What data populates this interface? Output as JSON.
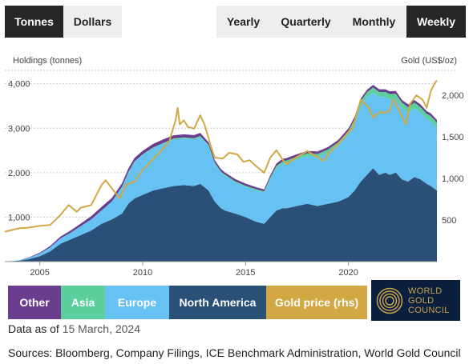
{
  "unit_toggle": [
    {
      "label": "Tonnes",
      "active": true
    },
    {
      "label": "Dollars",
      "active": false
    }
  ],
  "period_toggle": [
    {
      "label": "Yearly",
      "active": false
    },
    {
      "label": "Quarterly",
      "active": false
    },
    {
      "label": "Monthly",
      "active": false
    },
    {
      "label": "Weekly",
      "active": true
    }
  ],
  "legend": [
    {
      "label": "Other",
      "color": "#6a3d8f"
    },
    {
      "label": "Asia",
      "color": "#5ccf9d"
    },
    {
      "label": "Europe",
      "color": "#66c2f2"
    },
    {
      "label": "North America",
      "color": "#2a5078"
    },
    {
      "label": "Gold price (rhs)",
      "color": "#d2a845"
    }
  ],
  "logo": {
    "lines": [
      "WORLD",
      "GOLD",
      "COUNCIL"
    ]
  },
  "footer": {
    "data_as_of_label": "Data as of",
    "data_as_of_date": "15 March, 2024",
    "sources": "Sources: Bloomberg, Company Filings, ICE Benchmark Administration, World Gold Council"
  },
  "chart_data": {
    "type": "area",
    "ylabel": "Holdings (tonnes)",
    "y2label": "Gold (US$/oz)",
    "xlim": [
      2003.3,
      2024.3
    ],
    "ylim": [
      0,
      4300
    ],
    "y2lim": [
      0,
      2300
    ],
    "xticks": [
      2005,
      2010,
      2015,
      2020
    ],
    "xtick_labels": [
      "2005",
      "2010",
      "2015",
      "2020"
    ],
    "yticks": [
      1000,
      2000,
      3000,
      4000
    ],
    "ytick_labels": [
      "1,000",
      "2,000",
      "3,000",
      "4,000"
    ],
    "y2ticks": [
      500,
      1000,
      1500,
      2000
    ],
    "y2tick_labels": [
      "500",
      "1,000",
      "1,500",
      "2,000"
    ],
    "grid": true,
    "x": [
      2003.3,
      2004.0,
      2004.5,
      2005.0,
      2005.5,
      2006.0,
      2006.5,
      2007.0,
      2007.5,
      2008.0,
      2008.5,
      2009.0,
      2009.3,
      2009.6,
      2010.0,
      2010.5,
      2011.0,
      2011.5,
      2012.0,
      2012.5,
      2012.8,
      2013.2,
      2013.5,
      2013.8,
      2014.0,
      2014.5,
      2015.0,
      2015.5,
      2015.9,
      2016.2,
      2016.5,
      2016.8,
      2017.0,
      2017.5,
      2018.0,
      2018.5,
      2019.0,
      2019.5,
      2020.0,
      2020.3,
      2020.6,
      2020.9,
      2021.2,
      2021.5,
      2021.8,
      2022.0,
      2022.3,
      2022.6,
      2022.9,
      2023.2,
      2023.5,
      2023.8,
      2024.0,
      2024.3
    ],
    "series": [
      {
        "name": "North America",
        "color": "#2a5078",
        "values": [
          0,
          20,
          60,
          120,
          230,
          400,
          500,
          600,
          700,
          850,
          950,
          1080,
          1300,
          1420,
          1500,
          1600,
          1650,
          1700,
          1720,
          1700,
          1750,
          1600,
          1350,
          1200,
          1150,
          1080,
          1000,
          900,
          850,
          1000,
          1150,
          1200,
          1200,
          1250,
          1300,
          1250,
          1300,
          1350,
          1450,
          1600,
          1800,
          1950,
          2100,
          1950,
          2000,
          1950,
          2000,
          1850,
          1800,
          1900,
          1850,
          1750,
          1700,
          1600
        ]
      },
      {
        "name": "Europe",
        "color": "#66c2f2",
        "values": [
          0,
          10,
          30,
          60,
          90,
          120,
          150,
          200,
          250,
          300,
          400,
          600,
          700,
          820,
          900,
          950,
          1000,
          1050,
          1050,
          1050,
          1050,
          1000,
          850,
          800,
          780,
          700,
          680,
          700,
          700,
          850,
          950,
          1000,
          1020,
          1050,
          1070,
          1100,
          1150,
          1250,
          1400,
          1500,
          1700,
          1750,
          1700,
          1750,
          1700,
          1700,
          1650,
          1600,
          1550,
          1550,
          1500,
          1450,
          1450,
          1400
        ]
      },
      {
        "name": "Asia",
        "color": "#5ccf9d",
        "values": [
          0,
          0,
          0,
          0,
          0,
          0,
          0,
          0,
          0,
          0,
          0,
          5,
          8,
          10,
          12,
          15,
          18,
          20,
          22,
          25,
          25,
          25,
          25,
          25,
          25,
          25,
          25,
          30,
          30,
          40,
          50,
          55,
          55,
          60,
          65,
          70,
          70,
          80,
          90,
          100,
          110,
          110,
          115,
          115,
          115,
          120,
          125,
          125,
          125,
          125,
          125,
          125,
          125,
          125
        ]
      },
      {
        "name": "Other",
        "color": "#6a3d8f",
        "values": [
          0,
          0,
          10,
          20,
          30,
          40,
          50,
          60,
          70,
          80,
          80,
          80,
          80,
          80,
          80,
          80,
          80,
          70,
          70,
          70,
          70,
          60,
          60,
          55,
          50,
          50,
          50,
          45,
          45,
          50,
          55,
          55,
          55,
          55,
          55,
          55,
          55,
          55,
          55,
          55,
          55,
          55,
          60,
          60,
          60,
          60,
          60,
          60,
          60,
          60,
          60,
          60,
          60,
          60
        ]
      }
    ],
    "gold_price": {
      "name": "Gold price (rhs)",
      "color": "#d2a845",
      "x": [
        2003.3,
        2004.0,
        2004.5,
        2005.0,
        2005.5,
        2006.0,
        2006.4,
        2006.8,
        2007.0,
        2007.5,
        2008.0,
        2008.2,
        2008.6,
        2008.9,
        2009.2,
        2009.6,
        2010.0,
        2010.5,
        2011.0,
        2011.3,
        2011.6,
        2011.7,
        2011.8,
        2012.0,
        2012.2,
        2012.5,
        2012.8,
        2013.0,
        2013.3,
        2013.5,
        2013.9,
        2014.2,
        2014.6,
        2014.9,
        2015.2,
        2015.5,
        2015.9,
        2016.2,
        2016.5,
        2016.8,
        2017.0,
        2017.5,
        2018.0,
        2018.5,
        2018.8,
        2019.0,
        2019.5,
        2019.8,
        2020.0,
        2020.2,
        2020.6,
        2020.8,
        2021.0,
        2021.2,
        2021.5,
        2021.8,
        2022.0,
        2022.2,
        2022.5,
        2022.8,
        2023.0,
        2023.3,
        2023.6,
        2023.8,
        2024.0,
        2024.2,
        2024.3
      ],
      "values": [
        360,
        400,
        410,
        430,
        440,
        560,
        680,
        600,
        650,
        680,
        920,
        980,
        850,
        760,
        930,
        960,
        1100,
        1230,
        1360,
        1450,
        1700,
        1850,
        1650,
        1700,
        1620,
        1600,
        1760,
        1650,
        1400,
        1250,
        1240,
        1310,
        1290,
        1200,
        1220,
        1150,
        1070,
        1250,
        1340,
        1230,
        1170,
        1260,
        1330,
        1260,
        1210,
        1290,
        1420,
        1500,
        1560,
        1600,
        1950,
        1900,
        1850,
        1730,
        1800,
        1790,
        1820,
        1950,
        1800,
        1650,
        1900,
        2000,
        1950,
        1850,
        2050,
        2150,
        2180
      ]
    }
  }
}
